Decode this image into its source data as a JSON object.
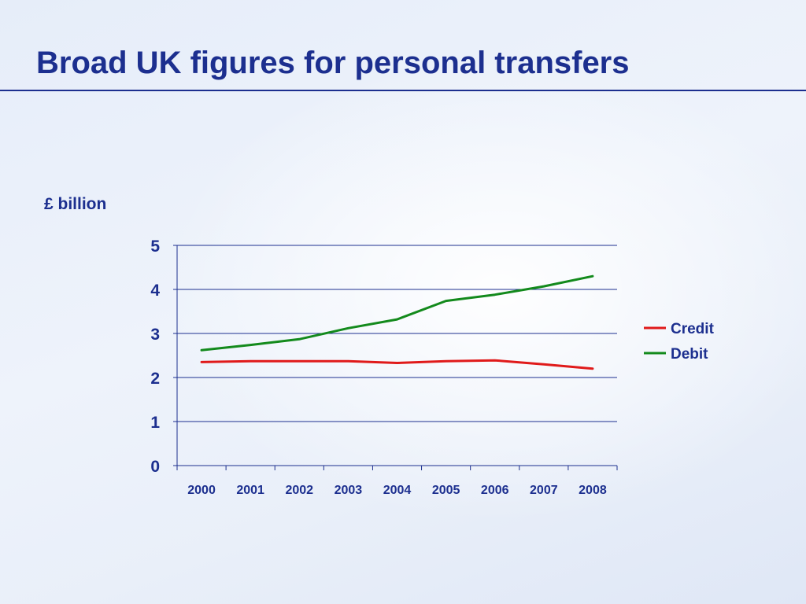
{
  "slide": {
    "title": "Broad UK figures for personal transfers"
  },
  "colors": {
    "title": "#1c2f8f",
    "axis": "#1c2f8f",
    "credit": "#e01a1a",
    "debit": "#138a1c"
  },
  "chart_data": {
    "type": "line",
    "title": "",
    "ylabel": "£ billion",
    "xlabel": "",
    "categories": [
      "2000",
      "2001",
      "2002",
      "2003",
      "2004",
      "2005",
      "2006",
      "2007",
      "2008"
    ],
    "ylim": [
      0,
      5
    ],
    "yticks": [
      "0",
      "1",
      "2",
      "3",
      "4",
      "5"
    ],
    "grid": true,
    "legend_position": "right",
    "series": [
      {
        "name": "Credit",
        "color": "#e01a1a",
        "values": [
          2.35,
          2.37,
          2.37,
          2.37,
          2.33,
          2.37,
          2.39,
          2.3,
          2.2
        ]
      },
      {
        "name": "Debit",
        "color": "#138a1c",
        "values": [
          2.62,
          2.74,
          2.87,
          3.12,
          3.32,
          3.74,
          3.88,
          4.07,
          4.3
        ]
      }
    ]
  }
}
